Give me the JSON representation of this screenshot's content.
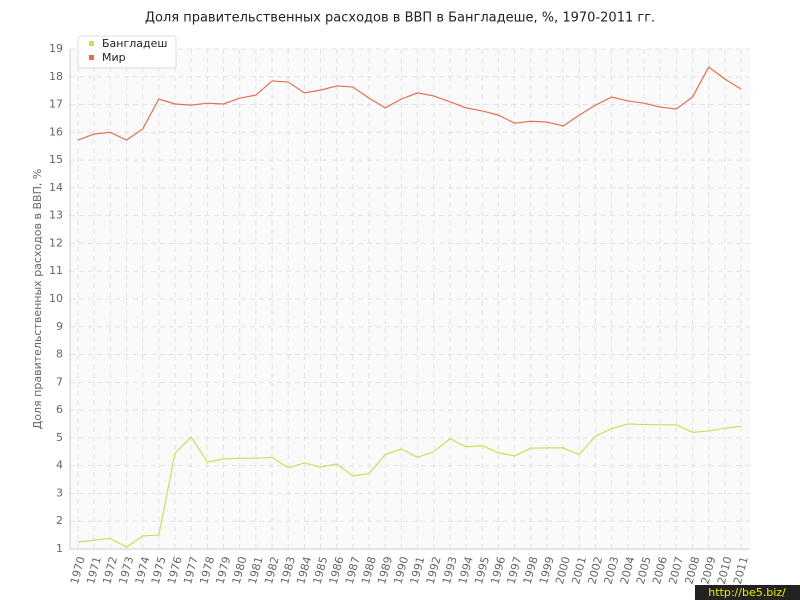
{
  "chart_data": {
    "type": "line",
    "title": "Доля правительственных расходов в ВВП в Бангладеше, %, 1970-2011 гг.",
    "y_label": "Доля правительственных расходов в ВВП, %",
    "watermark": "http://be5.biz/",
    "x": [
      1970,
      1971,
      1972,
      1973,
      1974,
      1975,
      1976,
      1977,
      1978,
      1979,
      1980,
      1981,
      1982,
      1983,
      1984,
      1985,
      1986,
      1987,
      1988,
      1989,
      1990,
      1991,
      1992,
      1993,
      1994,
      1995,
      1996,
      1997,
      1998,
      1999,
      2000,
      2001,
      2002,
      2003,
      2004,
      2005,
      2006,
      2007,
      2008,
      2009,
      2010,
      2011
    ],
    "series": [
      {
        "name": "Бангладеш",
        "color": "#c8e05c",
        "values": [
          1.25,
          1.32,
          1.38,
          1.07,
          1.47,
          1.5,
          4.45,
          5.03,
          4.13,
          4.24,
          4.27,
          4.27,
          4.3,
          3.92,
          4.1,
          3.95,
          4.06,
          3.63,
          3.72,
          4.4,
          4.6,
          4.3,
          4.5,
          4.97,
          4.68,
          4.72,
          4.46,
          4.35,
          4.63,
          4.64,
          4.64,
          4.4,
          5.07,
          5.33,
          5.5,
          5.48,
          5.47,
          5.47,
          5.2,
          5.25,
          5.35,
          5.42
        ]
      },
      {
        "name": "Мир",
        "color": "#e07050",
        "values": [
          15.72,
          15.94,
          16.0,
          15.72,
          16.12,
          17.2,
          17.02,
          16.98,
          17.05,
          17.02,
          17.23,
          17.34,
          17.85,
          17.81,
          17.42,
          17.52,
          17.67,
          17.63,
          17.23,
          16.88,
          17.2,
          17.42,
          17.31,
          17.1,
          16.88,
          16.77,
          16.62,
          16.33,
          16.4,
          16.37,
          16.23,
          16.62,
          16.98,
          17.27,
          17.13,
          17.05,
          16.91,
          16.84,
          17.27,
          18.35,
          17.92,
          17.56
        ]
      }
    ],
    "xlim": [
      1970,
      2011
    ],
    "ylim": [
      1,
      19
    ],
    "yticks": [
      1,
      2,
      3,
      4,
      5,
      6,
      7,
      8,
      9,
      10,
      11,
      12,
      13,
      14,
      15,
      16,
      17,
      18,
      19
    ],
    "grid": true,
    "legend": "top-left"
  }
}
